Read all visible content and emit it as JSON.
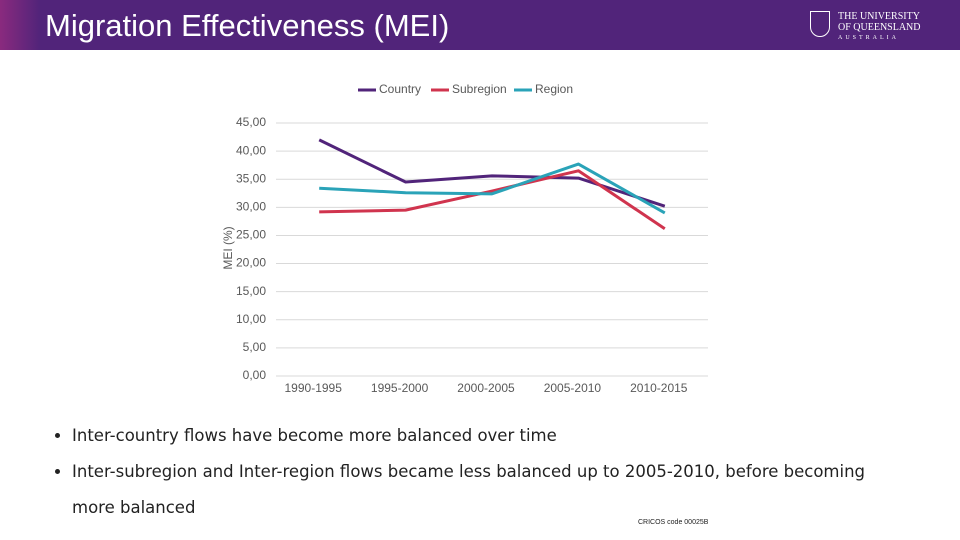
{
  "header": {
    "title": "Migration Effectiveness (MEI)",
    "logo_line1": "THE UNIVERSITY",
    "logo_line2": "OF QUEENSLAND",
    "logo_line3": "AUSTRALIA"
  },
  "chart_data": {
    "type": "line",
    "y_label": "MEI (%)",
    "legend": "top",
    "grid": true,
    "categories": [
      "1990-1995",
      "1995-2000",
      "2000-2005",
      "2005-2010",
      "2010-2015"
    ],
    "series": [
      {
        "name": "Country",
        "color": "#51247a",
        "values": [
          42.0,
          34.5,
          35.6,
          35.2,
          30.2
        ]
      },
      {
        "name": "Subregion",
        "color": "#d0344e",
        "values": [
          29.2,
          29.5,
          32.9,
          36.5,
          26.2
        ]
      },
      {
        "name": "Region",
        "color": "#2aa3b8",
        "values": [
          33.4,
          32.6,
          32.4,
          37.7,
          29.0
        ]
      }
    ],
    "ylim": [
      0,
      45
    ],
    "yticks": [
      {
        "value": 0,
        "label": "0,00"
      },
      {
        "value": 5,
        "label": "5,00"
      },
      {
        "value": 10,
        "label": "10,00"
      },
      {
        "value": 15,
        "label": "15,00"
      },
      {
        "value": 20,
        "label": "20,00"
      },
      {
        "value": 25,
        "label": "25,00"
      },
      {
        "value": 30,
        "label": "30,00"
      },
      {
        "value": 35,
        "label": "35,00"
      },
      {
        "value": 40,
        "label": "40,00"
      },
      {
        "value": 45,
        "label": "45,00"
      }
    ]
  },
  "bullets": [
    "Inter-country flows have become more balanced over time",
    "Inter-subregion and Inter-region flows became less balanced up to 2005-2010, before becoming more balanced"
  ],
  "footer": "CRICOS code 00025B"
}
